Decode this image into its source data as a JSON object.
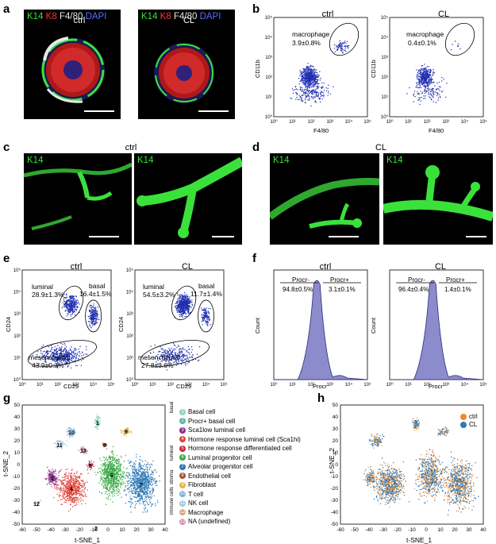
{
  "panel_labels": [
    "a",
    "b",
    "c",
    "d",
    "e",
    "f",
    "g",
    "h"
  ],
  "colors": {
    "k14": "#3be13b",
    "k8": "#ff3030",
    "f480": "#e8e8e8",
    "dapi": "#5a6cff",
    "flow": "#1f2fb0",
    "hist_fill": "#8c8ccc",
    "ctrl_orange": "#ef8a2d",
    "cl_blue": "#2f79b5"
  },
  "a": {
    "left_title": "ctrl",
    "right_title": "CL",
    "stain": {
      "k14": "K14",
      "k8": "K8",
      "f480": "F4/80",
      "dapi": "DAPI"
    }
  },
  "b": {
    "left_title": "ctrl",
    "right_title": "CL",
    "xlabel": "F4/80",
    "ylabel": "CD11b",
    "ticks": [
      "10⁰",
      "10¹",
      "10²",
      "10³",
      "10⁴",
      "10⁵"
    ],
    "gate_name": "macrophage",
    "left_value": "3.9±0.8%",
    "right_value": "0.4±0.1%"
  },
  "c": {
    "title": "ctrl",
    "label": "K14"
  },
  "d": {
    "title": "CL",
    "label": "K14"
  },
  "e": {
    "left_title": "ctrl",
    "right_title": "CL",
    "xlabel": "CD29",
    "ylabel": "CD24",
    "ticks": [
      "10⁰",
      "10¹",
      "10²",
      "10³",
      "10⁴",
      "10⁵"
    ],
    "gates": [
      "luminal",
      "basal",
      "mesenchymal"
    ],
    "left_values": [
      "28.9±1.3%",
      "16.4±1.5%",
      "43.9±0.3%"
    ],
    "right_values": [
      "54.5±3.2%",
      "11.7±1.4%",
      "27.8±3.6%"
    ]
  },
  "f": {
    "left_title": "ctrl",
    "right_title": "CL",
    "xlabel": "Procr",
    "ylabel": "Count",
    "ticks": [
      "10⁰",
      "10¹",
      "10²",
      "10³",
      "10⁴",
      "10⁵"
    ],
    "gates": [
      "Procr-",
      "Procr+"
    ],
    "left_values": [
      "94.8±0.5%",
      "3.1±0.1%"
    ],
    "right_values": [
      "96.4±0.4%",
      "1.4±0.1%"
    ]
  },
  "g": {
    "xlabel": "t-SNE_1",
    "ylabel": "t-SNE_2",
    "xticks": [
      "-60",
      "-50",
      "-40",
      "-30",
      "-20",
      "-10",
      "0",
      "10",
      "20",
      "30",
      "40"
    ],
    "yticks": [
      "50",
      "40",
      "30",
      "20",
      "10",
      "0",
      "-10",
      "-20",
      "-30",
      "-40",
      "-50"
    ],
    "groups": [
      "basal",
      "luminal",
      "stroma",
      "immune cells"
    ],
    "legend": [
      {
        "n": "1",
        "label": "Basal cell",
        "color": "#8fd3c4"
      },
      {
        "n": "2",
        "label": "Procr+ basal cell",
        "color": "#5fb3a5"
      },
      {
        "n": "3",
        "label": "Sca1low luminal cell",
        "color": "#8e2c8e"
      },
      {
        "n": "4",
        "label": "Hormone response luminal cell (Sca1hi)",
        "color": "#e0423b"
      },
      {
        "n": "5",
        "label": "Hormone response differentiated cell",
        "color": "#c8283c"
      },
      {
        "n": "6",
        "label": "Luminal progenitor cell",
        "color": "#39a845"
      },
      {
        "n": "7",
        "label": "Alveolar progenitor cell",
        "color": "#2f79b5"
      },
      {
        "n": "8",
        "label": "Endothelial cell",
        "color": "#a0522d"
      },
      {
        "n": "9",
        "label": "Fibroblast",
        "color": "#e6b640"
      },
      {
        "n": "10",
        "label": "T cell",
        "color": "#6fb3d9"
      },
      {
        "n": "11",
        "label": "NK cell",
        "color": "#9ec9e6"
      },
      {
        "n": "12",
        "label": "Macrophage",
        "color": "#d9a07a"
      },
      {
        "n": "13",
        "label": "NA (undefined)",
        "color": "#d98fb0"
      }
    ]
  },
  "h": {
    "xlabel": "t-SNE_1",
    "ylabel": "t-SNE_2",
    "xticks": [
      "-60",
      "-50",
      "-40",
      "-30",
      "-20",
      "-10",
      "0",
      "10",
      "20",
      "30",
      "40"
    ],
    "yticks": [
      "50",
      "40",
      "30",
      "20",
      "10",
      "0",
      "-10",
      "-20",
      "-30",
      "-40",
      "-50"
    ],
    "legend": [
      {
        "label": "ctrl",
        "color": "#ef8a2d"
      },
      {
        "label": "CL",
        "color": "#2f79b5"
      }
    ]
  }
}
